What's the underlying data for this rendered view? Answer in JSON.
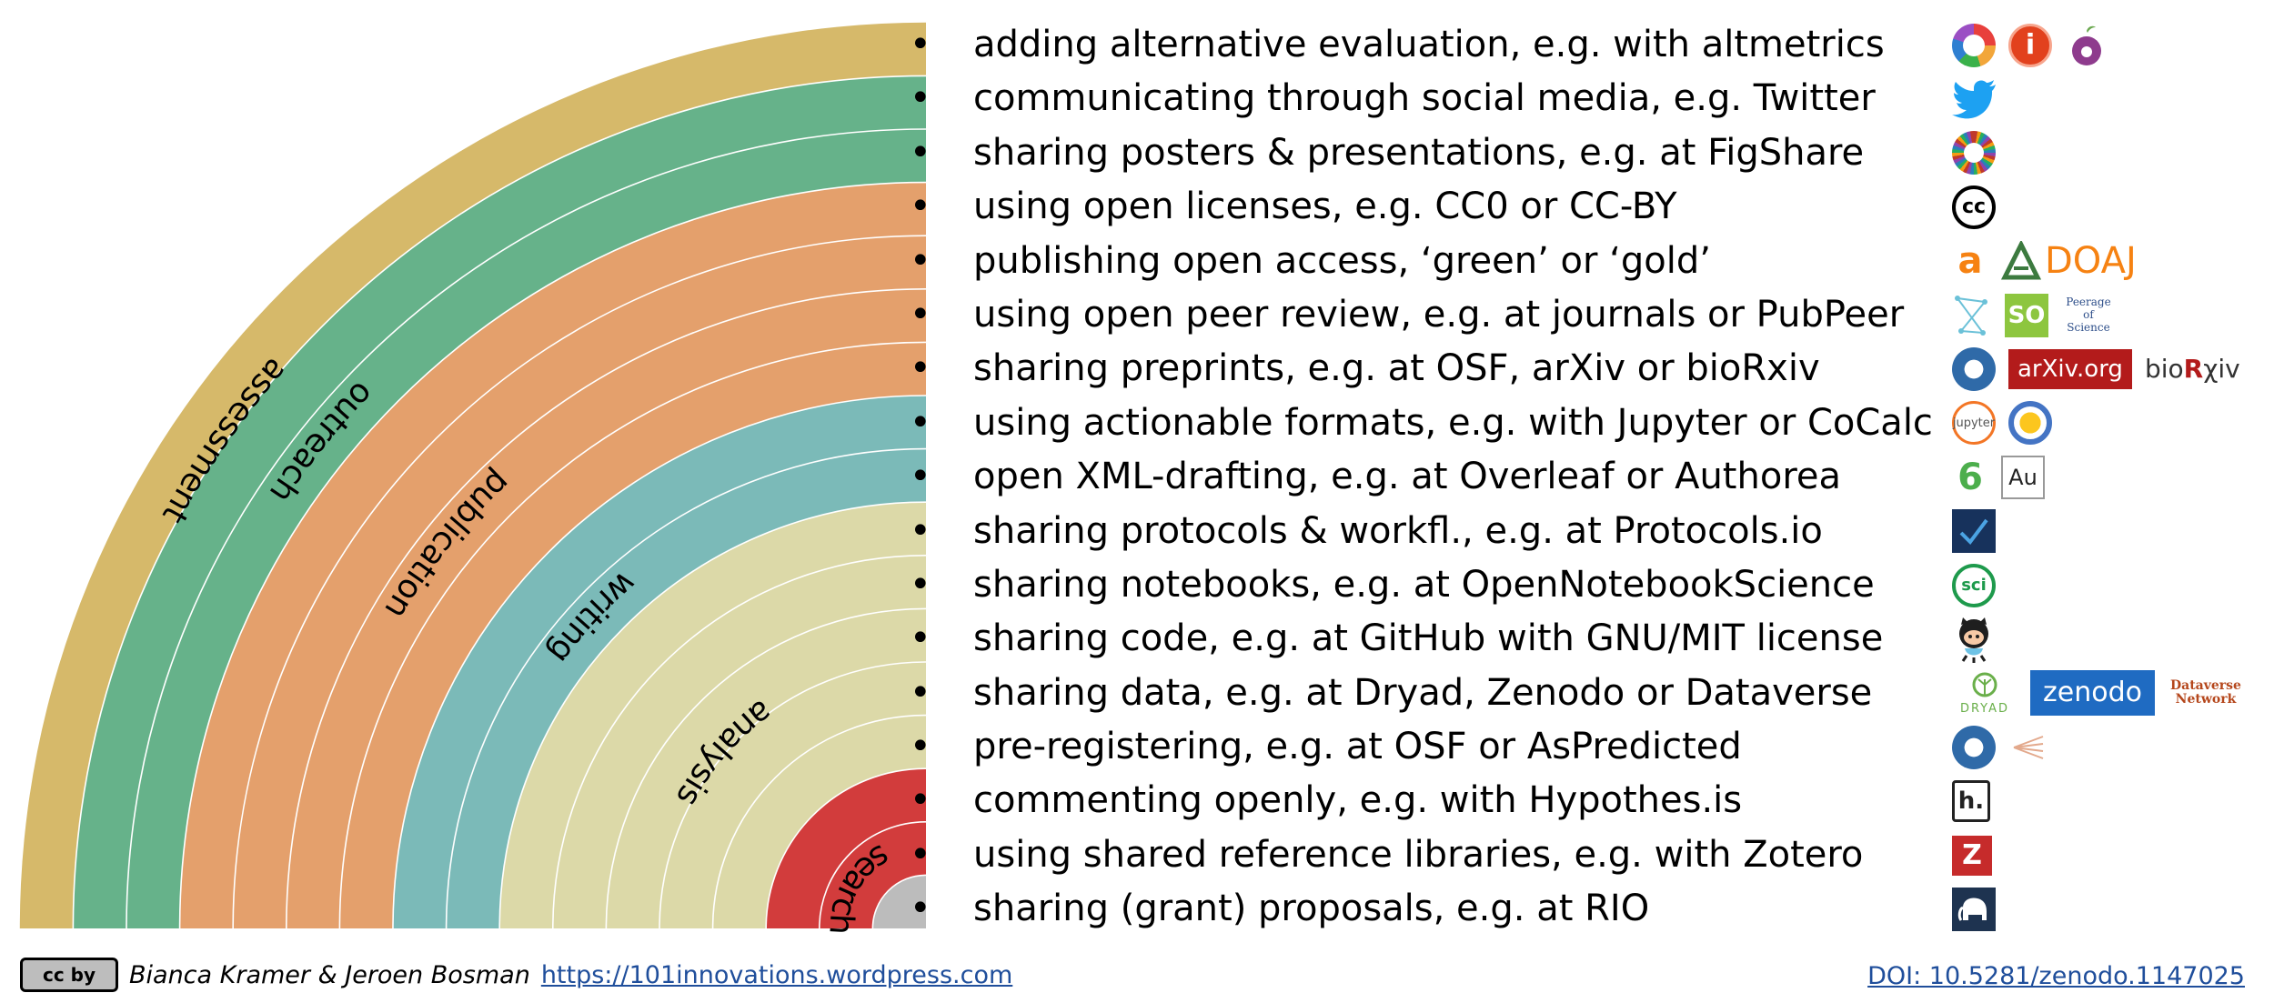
{
  "colors": {
    "assessment": "#d6b96a",
    "outreach": "#66b28a",
    "publication": "#e4a06c",
    "writing": "#7bbab8",
    "analysis": "#dcd9a8",
    "search": "#d23c3c",
    "discovery": "#bcbcbc"
  },
  "diagram": {
    "bands": [
      {
        "key": "assessment",
        "label": "assessment",
        "rings": 1
      },
      {
        "key": "outreach",
        "label": "outreach",
        "rings": 2
      },
      {
        "key": "publication",
        "label": "publication",
        "rings": 4
      },
      {
        "key": "writing",
        "label": "writing",
        "rings": 2
      },
      {
        "key": "analysis",
        "label": "analysis",
        "rings": 5
      },
      {
        "key": "search",
        "label": "search",
        "rings": 2
      },
      {
        "key": "discovery",
        "label": "",
        "rings": 1
      }
    ]
  },
  "practices": [
    "adding alternative evaluation, e.g. with altmetrics",
    "communicating through social media, e.g. Twitter",
    "sharing posters & presentations, e.g. at FigShare",
    "using open licenses, e.g. CC0 or CC-BY",
    "publishing open access, ‘green’ or ‘gold’",
    "using open peer review, e.g. at journals or PubPeer",
    "sharing preprints, e.g. at OSF, arXiv or bioRxiv",
    "using actionable formats, e.g. with Jupyter or CoCalc",
    "open XML-drafting, e.g. at Overleaf or Authorea",
    "sharing protocols & workfl., e.g. at Protocols.io",
    "sharing notebooks, e.g. at OpenNotebookScience",
    "sharing code, e.g. at GitHub with GNU/MIT license",
    "sharing data, e.g. at Dryad, Zenodo or Dataverse",
    "pre-registering, e.g. at OSF or AsPredicted",
    "commenting openly, e.g. with Hypothes.is",
    "using shared reference libraries, e.g. with Zotero",
    "sharing (grant) proposals, e.g. at RIO"
  ],
  "logos": {
    "i_mark": "i",
    "cc": "cc",
    "oa": "a",
    "doaj": "DOAJ",
    "so": "SO",
    "peerage": "Peerage of Science",
    "arxiv": "arXiv.org",
    "biorxiv_prefix": "bio",
    "biorxiv_r": "R",
    "biorxiv_suffix": "χiv",
    "jupyter": "jupyter",
    "overleaf": "6",
    "authorea": "Au",
    "sci": "sci",
    "dryad": "DRYAD",
    "zenodo": "zenodo",
    "dataverse": "Dataverse Network",
    "hypothesis": "h.",
    "zotero": "Z"
  },
  "footer": {
    "license_badge": "cc by",
    "authors": "Bianca Kramer & Jeroen Bosman",
    "site_url": "https://101innovations.wordpress.com",
    "doi": "DOI: 10.5281/zenodo.1147025"
  }
}
